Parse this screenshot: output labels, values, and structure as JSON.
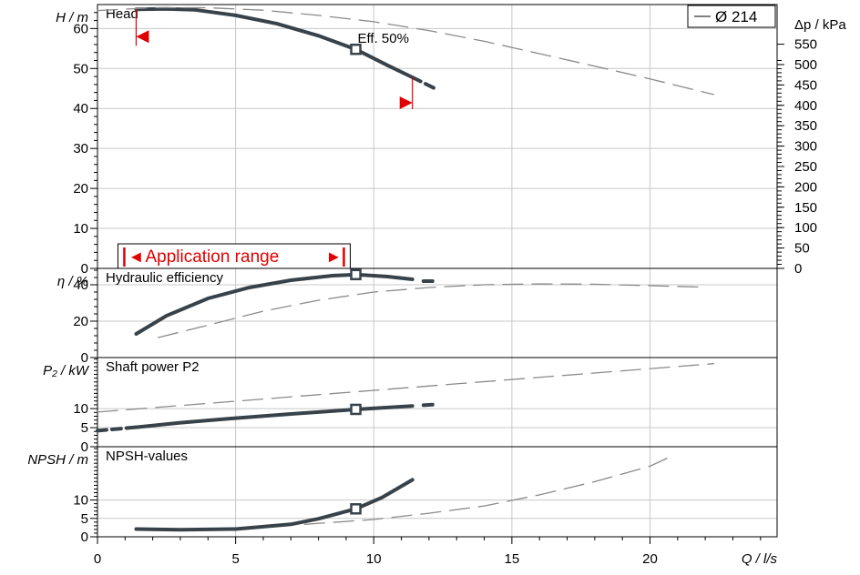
{
  "chart_data": [
    {
      "type": "line",
      "title": "Head",
      "ylabel": "H / m",
      "y2label": "Δp / kPa",
      "xlabel": "Q / l/s",
      "xlim": [
        0,
        24.6
      ],
      "ylim": [
        0,
        66
      ],
      "yticks": [
        0,
        10,
        20,
        30,
        40,
        50,
        60
      ],
      "y2ticks": [
        0,
        50,
        100,
        150,
        200,
        250,
        300,
        350,
        400,
        450,
        500,
        550
      ],
      "legend": {
        "label": "Ø 214",
        "placement": "top-right"
      },
      "annotation": "Eff.  50%",
      "application_range_label": "Application range",
      "application_range": [
        1.4,
        11.4
      ],
      "series": [
        {
          "style": "solid",
          "x": [
            1.4,
            2.5,
            3.5,
            5,
            6.5,
            8,
            9.35,
            10.5,
            11.4
          ],
          "y": [
            64.8,
            64.9,
            64.7,
            63.3,
            61.2,
            58.2,
            54.8,
            50.8,
            47.8
          ]
        },
        {
          "style": "dashed",
          "x": [
            11.4,
            12.3
          ],
          "y": [
            47.8,
            44.7
          ]
        },
        {
          "style": "dashed",
          "x": [
            0,
            2,
            4,
            6,
            8,
            10,
            12,
            14,
            16,
            18,
            20,
            22.3
          ],
          "y": [
            64.5,
            65.2,
            65.2,
            64.6,
            63.3,
            61.7,
            59.5,
            56.8,
            53.7,
            50.6,
            47.4,
            43.5
          ]
        }
      ],
      "markers": [
        {
          "x": 9.35,
          "y": 54.8
        }
      ]
    },
    {
      "type": "line",
      "title": "Hydraulic efficiency",
      "ylabel": "η / %",
      "xlim": [
        0,
        24.6
      ],
      "ylim": [
        0,
        49
      ],
      "yticks": [
        0,
        20,
        40
      ],
      "series": [
        {
          "style": "solid",
          "x": [
            1.4,
            2.5,
            4,
            5.5,
            7,
            8.5,
            9.35,
            10.5,
            11.4
          ],
          "y": [
            13,
            23,
            32.5,
            38.5,
            42.5,
            45,
            45.6,
            44.5,
            43
          ]
        },
        {
          "style": "dashed",
          "x": [
            11.8,
            12.3
          ],
          "y": [
            42,
            42
          ]
        },
        {
          "style": "dashed",
          "x": [
            2.2,
            4,
            6,
            8,
            10,
            12,
            14,
            16,
            18,
            20,
            22
          ],
          "y": [
            11,
            17.8,
            25.5,
            31.5,
            36,
            38.5,
            40,
            40.5,
            40.3,
            39.5,
            38.7
          ]
        }
      ],
      "markers": [
        {
          "x": 9.35,
          "y": 45.6
        }
      ]
    },
    {
      "type": "line",
      "title": "Shaft power P2",
      "ylabel": "P₂ / kW",
      "xlim": [
        0,
        24.6
      ],
      "ylim": [
        0,
        23.4
      ],
      "yticks": [
        0,
        5,
        10
      ],
      "series": [
        {
          "style": "solid",
          "x": [
            1.4,
            3,
            5,
            7,
            9.35,
            11.4
          ],
          "y": [
            5.1,
            6.3,
            7.5,
            8.6,
            9.8,
            10.7
          ]
        },
        {
          "style": "dashed",
          "x": [
            11.8,
            12.3
          ],
          "y": [
            10.9,
            11.1
          ]
        },
        {
          "style": "dashed",
          "x": [
            0,
            22.3
          ],
          "y": [
            9.1,
            21.8
          ]
        },
        {
          "style": "dashed",
          "x": [
            0,
            1.4
          ],
          "y": [
            4.2,
            5.1
          ]
        }
      ],
      "markers": [
        {
          "x": 9.35,
          "y": 9.8
        }
      ]
    },
    {
      "type": "line",
      "title": "NPSH-values",
      "ylabel": "NPSH / m",
      "xlim": [
        0,
        24.6
      ],
      "ylim": [
        0,
        24.5
      ],
      "yticks": [
        0,
        5,
        10
      ],
      "series": [
        {
          "style": "solid",
          "x": [
            1.4,
            3,
            5,
            7,
            8,
            9.35,
            10.3,
            11.4
          ],
          "y": [
            2.1,
            1.9,
            2.1,
            3.4,
            4.9,
            7.6,
            10.7,
            15.5
          ]
        },
        {
          "style": "dashed",
          "x": [
            7.5,
            10,
            12,
            14,
            16,
            18,
            20,
            20.8
          ],
          "y": [
            3.4,
            4.7,
            6.4,
            8.4,
            11.4,
            15,
            19.2,
            22
          ]
        }
      ],
      "markers": [
        {
          "x": 9.35,
          "y": 7.6
        }
      ]
    }
  ],
  "shared_x_ticks": [
    0,
    5,
    10,
    15,
    20
  ],
  "colors": {
    "curve": "#37424a",
    "dash": "#8a8a8a",
    "grid": "#c8c8c8",
    "accent": "#e10000"
  }
}
